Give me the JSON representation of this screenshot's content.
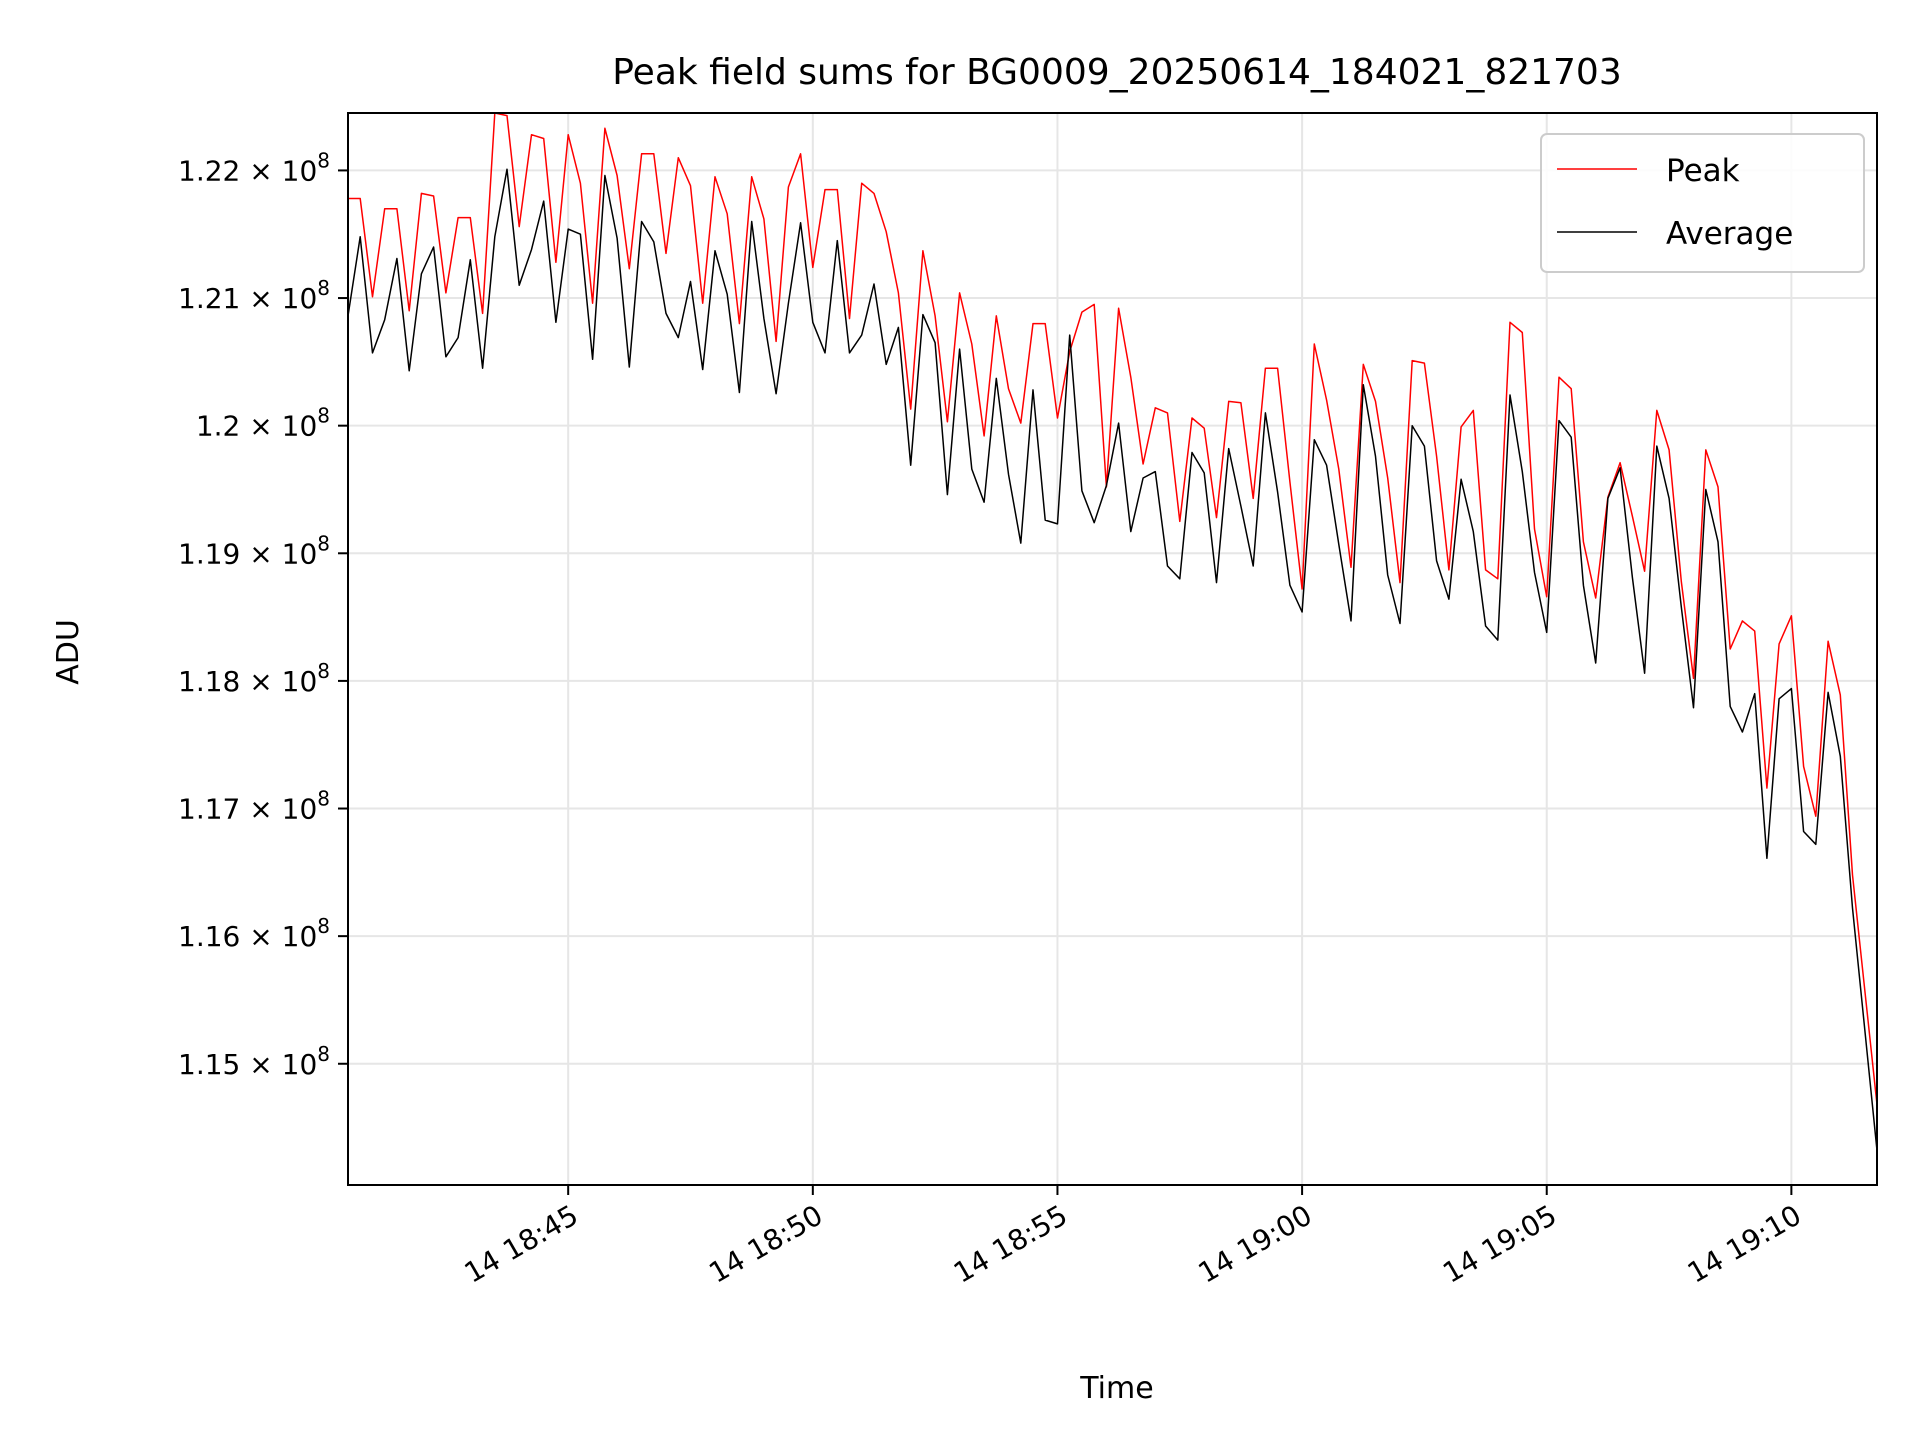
{
  "chart_data": {
    "type": "line",
    "title": "Peak field sums for BG0009_20250614_184021_821703",
    "xlabel": "Time",
    "ylabel": "ADU",
    "xlim": [
      "2025-06-14 18:40:30",
      "2025-06-14 19:11:45"
    ],
    "ylim": [
      114050000,
      122450000
    ],
    "grid": true,
    "legend_position": "top-right",
    "x_ticks": [
      {
        "time": "2025-06-14 18:45:00",
        "label": "14 18:45"
      },
      {
        "time": "2025-06-14 18:50:00",
        "label": "14 18:50"
      },
      {
        "time": "2025-06-14 18:55:00",
        "label": "14 18:55"
      },
      {
        "time": "2025-06-14 19:00:00",
        "label": "14 19:00"
      },
      {
        "time": "2025-06-14 19:05:00",
        "label": "14 19:05"
      },
      {
        "time": "2025-06-14 19:10:00",
        "label": "14 19:10"
      }
    ],
    "y_ticks": [
      {
        "value": 115000000,
        "mantissa": "1.15",
        "exponent": "8"
      },
      {
        "value": 116000000,
        "mantissa": "1.16",
        "exponent": "8"
      },
      {
        "value": 117000000,
        "mantissa": "1.17",
        "exponent": "8"
      },
      {
        "value": 118000000,
        "mantissa": "1.18",
        "exponent": "8"
      },
      {
        "value": 119000000,
        "mantissa": "1.19",
        "exponent": "8"
      },
      {
        "value": 120000000,
        "mantissa": "1.2",
        "exponent": "8"
      },
      {
        "value": 121000000,
        "mantissa": "1.21",
        "exponent": "8"
      },
      {
        "value": 122000000,
        "mantissa": "1.22",
        "exponent": "8"
      }
    ],
    "tick_base": "× 10",
    "series": [
      {
        "name": "Peak",
        "color": "#ff0000",
        "points": [
          [
            "18:40:30",
            121780000
          ],
          [
            "18:40:45",
            121780000
          ],
          [
            "18:41:00",
            121010000
          ],
          [
            "18:41:15",
            121700000
          ],
          [
            "18:41:30",
            121700000
          ],
          [
            "18:41:45",
            120900000
          ],
          [
            "18:42:00",
            121820000
          ],
          [
            "18:42:15",
            121800000
          ],
          [
            "18:42:30",
            121040000
          ],
          [
            "18:42:45",
            121630000
          ],
          [
            "18:43:00",
            121630000
          ],
          [
            "18:43:15",
            120880000
          ],
          [
            "18:43:30",
            122450000
          ],
          [
            "18:43:45",
            122430000
          ],
          [
            "18:44:00",
            121560000
          ],
          [
            "18:44:15",
            122280000
          ],
          [
            "18:44:30",
            122250000
          ],
          [
            "18:44:45",
            121280000
          ],
          [
            "18:45:00",
            122280000
          ],
          [
            "18:45:15",
            121900000
          ],
          [
            "18:45:30",
            120960000
          ],
          [
            "18:45:45",
            122330000
          ],
          [
            "18:46:00",
            121960000
          ],
          [
            "18:46:15",
            121230000
          ],
          [
            "18:46:30",
            122130000
          ],
          [
            "18:46:45",
            122130000
          ],
          [
            "18:47:00",
            121350000
          ],
          [
            "18:47:15",
            122100000
          ],
          [
            "18:47:30",
            121880000
          ],
          [
            "18:47:45",
            120960000
          ],
          [
            "18:48:00",
            121950000
          ],
          [
            "18:48:15",
            121660000
          ],
          [
            "18:48:30",
            120800000
          ],
          [
            "18:48:45",
            121950000
          ],
          [
            "18:49:00",
            121620000
          ],
          [
            "18:49:15",
            120660000
          ],
          [
            "18:49:30",
            121870000
          ],
          [
            "18:49:45",
            122130000
          ],
          [
            "18:50:00",
            121240000
          ],
          [
            "18:50:15",
            121850000
          ],
          [
            "18:50:30",
            121850000
          ],
          [
            "18:50:45",
            120840000
          ],
          [
            "18:51:00",
            121900000
          ],
          [
            "18:51:15",
            121820000
          ],
          [
            "18:51:30",
            121520000
          ],
          [
            "18:51:45",
            121040000
          ],
          [
            "18:52:00",
            120130000
          ],
          [
            "18:52:15",
            121370000
          ],
          [
            "18:52:30",
            120860000
          ],
          [
            "18:52:45",
            120030000
          ],
          [
            "18:53:00",
            121040000
          ],
          [
            "18:53:15",
            120640000
          ],
          [
            "18:53:30",
            119920000
          ],
          [
            "18:53:45",
            120860000
          ],
          [
            "18:54:00",
            120290000
          ],
          [
            "18:54:15",
            120020000
          ],
          [
            "18:54:30",
            120800000
          ],
          [
            "18:54:45",
            120800000
          ],
          [
            "18:55:00",
            120060000
          ],
          [
            "18:55:15",
            120580000
          ],
          [
            "18:55:30",
            120890000
          ],
          [
            "18:55:45",
            120950000
          ],
          [
            "18:56:00",
            119520000
          ],
          [
            "18:56:15",
            120920000
          ],
          [
            "18:56:30",
            120380000
          ],
          [
            "18:56:45",
            119700000
          ],
          [
            "18:57:00",
            120140000
          ],
          [
            "18:57:15",
            120100000
          ],
          [
            "18:57:30",
            119250000
          ],
          [
            "18:57:45",
            120060000
          ],
          [
            "18:58:00",
            119980000
          ],
          [
            "18:58:15",
            119280000
          ],
          [
            "18:58:30",
            120190000
          ],
          [
            "18:58:45",
            120180000
          ],
          [
            "18:59:00",
            119430000
          ],
          [
            "18:59:15",
            120450000
          ],
          [
            "18:59:30",
            120450000
          ],
          [
            "18:59:45",
            119560000
          ],
          [
            "19:00:00",
            118720000
          ],
          [
            "19:00:15",
            120640000
          ],
          [
            "19:00:30",
            120200000
          ],
          [
            "19:00:45",
            119660000
          ],
          [
            "19:01:00",
            118890000
          ],
          [
            "19:01:15",
            120480000
          ],
          [
            "19:01:30",
            120190000
          ],
          [
            "19:01:45",
            119590000
          ],
          [
            "19:02:00",
            118770000
          ],
          [
            "19:02:15",
            120510000
          ],
          [
            "19:02:30",
            120490000
          ],
          [
            "19:02:45",
            119760000
          ],
          [
            "19:03:00",
            118870000
          ],
          [
            "19:03:15",
            119990000
          ],
          [
            "19:03:30",
            120120000
          ],
          [
            "19:03:45",
            118870000
          ],
          [
            "19:04:00",
            118800000
          ],
          [
            "19:04:15",
            120810000
          ],
          [
            "19:04:30",
            120730000
          ],
          [
            "19:04:45",
            119190000
          ],
          [
            "19:05:00",
            118660000
          ],
          [
            "19:05:15",
            120380000
          ],
          [
            "19:05:30",
            120290000
          ],
          [
            "19:05:45",
            119090000
          ],
          [
            "19:06:00",
            118650000
          ],
          [
            "19:06:15",
            119440000
          ],
          [
            "19:06:30",
            119710000
          ],
          [
            "19:06:45",
            119290000
          ],
          [
            "19:07:00",
            118860000
          ],
          [
            "19:07:15",
            120120000
          ],
          [
            "19:07:30",
            119810000
          ],
          [
            "19:07:45",
            118780000
          ],
          [
            "19:08:00",
            118020000
          ],
          [
            "19:08:15",
            119810000
          ],
          [
            "19:08:30",
            119520000
          ],
          [
            "19:08:45",
            118250000
          ],
          [
            "19:09:00",
            118470000
          ],
          [
            "19:09:15",
            118390000
          ],
          [
            "19:09:30",
            117160000
          ],
          [
            "19:09:45",
            118290000
          ],
          [
            "19:10:00",
            118510000
          ],
          [
            "19:10:15",
            117330000
          ],
          [
            "19:10:30",
            116940000
          ],
          [
            "19:10:45",
            118310000
          ],
          [
            "19:11:00",
            117890000
          ],
          [
            "19:11:15",
            116480000
          ],
          [
            "19:11:45",
            114680000
          ]
        ]
      },
      {
        "name": "Average",
        "color": "#000000",
        "points": [
          [
            "18:40:30",
            120860000
          ],
          [
            "18:40:45",
            121480000
          ],
          [
            "18:41:00",
            120570000
          ],
          [
            "18:41:15",
            120830000
          ],
          [
            "18:41:30",
            121310000
          ],
          [
            "18:41:45",
            120430000
          ],
          [
            "18:42:00",
            121190000
          ],
          [
            "18:42:15",
            121400000
          ],
          [
            "18:42:30",
            120540000
          ],
          [
            "18:42:45",
            120690000
          ],
          [
            "18:43:00",
            121300000
          ],
          [
            "18:43:15",
            120450000
          ],
          [
            "18:43:30",
            121480000
          ],
          [
            "18:43:45",
            122010000
          ],
          [
            "18:44:00",
            121100000
          ],
          [
            "18:44:15",
            121380000
          ],
          [
            "18:44:30",
            121760000
          ],
          [
            "18:44:45",
            120810000
          ],
          [
            "18:45:00",
            121540000
          ],
          [
            "18:45:15",
            121500000
          ],
          [
            "18:45:30",
            120520000
          ],
          [
            "18:45:45",
            121960000
          ],
          [
            "18:46:00",
            121470000
          ],
          [
            "18:46:15",
            120460000
          ],
          [
            "18:46:30",
            121600000
          ],
          [
            "18:46:45",
            121440000
          ],
          [
            "18:47:00",
            120880000
          ],
          [
            "18:47:15",
            120690000
          ],
          [
            "18:47:30",
            121130000
          ],
          [
            "18:47:45",
            120440000
          ],
          [
            "18:48:00",
            121370000
          ],
          [
            "18:48:15",
            121030000
          ],
          [
            "18:48:30",
            120260000
          ],
          [
            "18:48:45",
            121600000
          ],
          [
            "18:49:00",
            120840000
          ],
          [
            "18:49:15",
            120250000
          ],
          [
            "18:49:30",
            120960000
          ],
          [
            "18:49:45",
            121590000
          ],
          [
            "18:50:00",
            120810000
          ],
          [
            "18:50:15",
            120570000
          ],
          [
            "18:50:30",
            121450000
          ],
          [
            "18:50:45",
            120570000
          ],
          [
            "18:51:00",
            120710000
          ],
          [
            "18:51:15",
            121110000
          ],
          [
            "18:51:30",
            120480000
          ],
          [
            "18:51:45",
            120770000
          ],
          [
            "18:52:00",
            119690000
          ],
          [
            "18:52:15",
            120870000
          ],
          [
            "18:52:30",
            120650000
          ],
          [
            "18:52:45",
            119460000
          ],
          [
            "18:53:00",
            120600000
          ],
          [
            "18:53:15",
            119660000
          ],
          [
            "18:53:30",
            119400000
          ],
          [
            "18:53:45",
            120370000
          ],
          [
            "18:54:00",
            119620000
          ],
          [
            "18:54:15",
            119080000
          ],
          [
            "18:54:30",
            120280000
          ],
          [
            "18:54:45",
            119260000
          ],
          [
            "18:55:00",
            119230000
          ],
          [
            "18:55:15",
            120710000
          ],
          [
            "18:55:30",
            119490000
          ],
          [
            "18:55:45",
            119240000
          ],
          [
            "18:56:00",
            119530000
          ],
          [
            "18:56:15",
            120020000
          ],
          [
            "18:56:30",
            119170000
          ],
          [
            "18:56:45",
            119590000
          ],
          [
            "18:57:00",
            119640000
          ],
          [
            "18:57:15",
            118900000
          ],
          [
            "18:57:30",
            118800000
          ],
          [
            "18:57:45",
            119790000
          ],
          [
            "18:58:00",
            119630000
          ],
          [
            "18:58:15",
            118770000
          ],
          [
            "18:58:30",
            119820000
          ],
          [
            "18:58:45",
            119370000
          ],
          [
            "18:59:00",
            118900000
          ],
          [
            "18:59:15",
            120100000
          ],
          [
            "18:59:30",
            119480000
          ],
          [
            "18:59:45",
            118750000
          ],
          [
            "19:00:00",
            118540000
          ],
          [
            "19:00:15",
            119890000
          ],
          [
            "19:00:30",
            119690000
          ],
          [
            "19:00:45",
            119070000
          ],
          [
            "19:01:00",
            118470000
          ],
          [
            "19:01:15",
            120320000
          ],
          [
            "19:01:30",
            119760000
          ],
          [
            "19:01:45",
            118830000
          ],
          [
            "19:02:00",
            118450000
          ],
          [
            "19:02:15",
            120000000
          ],
          [
            "19:02:30",
            119840000
          ],
          [
            "19:02:45",
            118940000
          ],
          [
            "19:03:00",
            118640000
          ],
          [
            "19:03:15",
            119580000
          ],
          [
            "19:03:30",
            119170000
          ],
          [
            "19:03:45",
            118430000
          ],
          [
            "19:04:00",
            118320000
          ],
          [
            "19:04:15",
            120240000
          ],
          [
            "19:04:30",
            119640000
          ],
          [
            "19:04:45",
            118850000
          ],
          [
            "19:05:00",
            118380000
          ],
          [
            "19:05:15",
            120040000
          ],
          [
            "19:05:30",
            119910000
          ],
          [
            "19:05:45",
            118750000
          ],
          [
            "19:06:00",
            118140000
          ],
          [
            "19:06:15",
            119430000
          ],
          [
            "19:06:30",
            119670000
          ],
          [
            "19:06:45",
            118810000
          ],
          [
            "19:07:00",
            118060000
          ],
          [
            "19:07:15",
            119840000
          ],
          [
            "19:07:30",
            119430000
          ],
          [
            "19:07:45",
            118580000
          ],
          [
            "19:08:00",
            117790000
          ],
          [
            "19:08:15",
            119500000
          ],
          [
            "19:08:30",
            119090000
          ],
          [
            "19:08:45",
            117800000
          ],
          [
            "19:09:00",
            117600000
          ],
          [
            "19:09:15",
            117900000
          ],
          [
            "19:09:30",
            116610000
          ],
          [
            "19:09:45",
            117860000
          ],
          [
            "19:10:00",
            117940000
          ],
          [
            "19:10:15",
            116820000
          ],
          [
            "19:10:30",
            116720000
          ],
          [
            "19:10:45",
            117910000
          ],
          [
            "19:11:00",
            117410000
          ],
          [
            "19:11:15",
            116220000
          ],
          [
            "19:11:45",
            114320000
          ]
        ]
      }
    ]
  }
}
